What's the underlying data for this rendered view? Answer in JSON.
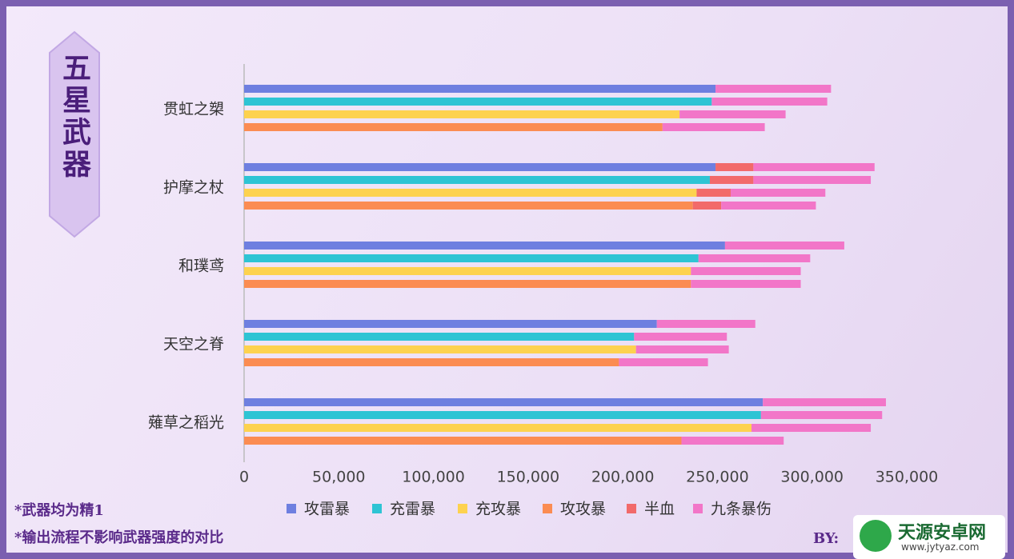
{
  "chart_data": {
    "type": "stacked-barh",
    "title": "五星武器",
    "categories": [
      "贯虹之槊",
      "护摩之杖",
      "和璞鸢",
      "天空之脊",
      "薙草之稻光"
    ],
    "series": [
      {
        "name": "攻雷暴",
        "color": "#6e7fe0",
        "values": [
          249000,
          249000,
          254000,
          218000,
          274000
        ]
      },
      {
        "name": "充雷暴",
        "color": "#2ec4d4",
        "values": [
          247000,
          246000,
          240000,
          206000,
          273000
        ]
      },
      {
        "name": "充攻暴",
        "color": "#fdd24f",
        "values": [
          230000,
          239000,
          236000,
          207000,
          268000
        ]
      },
      {
        "name": "攻攻暴",
        "color": "#fb8c52",
        "values": [
          221000,
          237000,
          236000,
          198000,
          231000
        ]
      },
      {
        "name": "半血",
        "color": "#f26a6a",
        "values": [
          [
            null,
            null,
            null,
            null
          ],
          [
            20000,
            23000,
            18000,
            15000
          ],
          [
            null,
            null,
            null,
            null
          ],
          [
            null,
            null,
            null,
            null
          ],
          [
            null,
            null,
            null,
            null
          ]
        ]
      },
      {
        "name": "九条暴伤",
        "color": "#f276c8",
        "values": [
          [
            61000,
            61000,
            56000,
            54000
          ],
          [
            64000,
            62000,
            50000,
            50000
          ],
          [
            63000,
            59000,
            58000,
            58000
          ],
          [
            52000,
            49000,
            49000,
            47000
          ],
          [
            65000,
            64000,
            63000,
            54000
          ]
        ]
      }
    ],
    "xlim": [
      0,
      350000
    ],
    "xticks": [
      0,
      {
        "value": 50000,
        "label": "50,000"
      },
      {
        "value": 100000,
        "label": "100,000"
      },
      {
        "value": 150000,
        "label": "150,000"
      },
      {
        "value": 200000,
        "label": "200,000"
      },
      {
        "value": 250000,
        "label": "250,000"
      },
      {
        "value": 300000,
        "label": "300,000"
      },
      {
        "value": 350000,
        "label": "350,000"
      }
    ],
    "notes": [
      "*武器均为精1",
      "*输出流程不影响武器强度的对比"
    ],
    "credit": "BY:"
  },
  "watermark": {
    "name": "天源安卓网",
    "url": "www.jytyaz.com"
  }
}
